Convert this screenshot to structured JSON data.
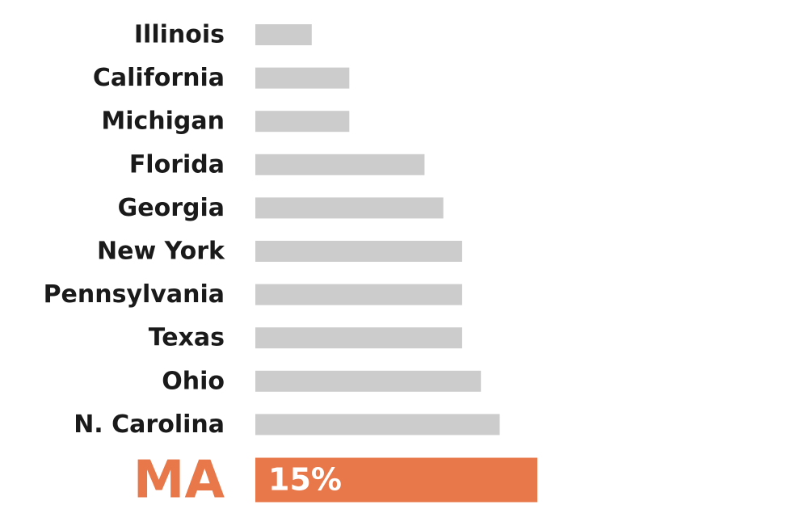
{
  "chart_data": {
    "type": "bar",
    "orientation": "horizontal",
    "categories": [
      "Illinois",
      "California",
      "Michigan",
      "Florida",
      "Georgia",
      "New York",
      "Pennsylvania",
      "Texas",
      "Ohio",
      "N. Carolina",
      "MA"
    ],
    "values": [
      3,
      5,
      5,
      9,
      10,
      11,
      11,
      11,
      12,
      13,
      15
    ],
    "value_labels": [
      null,
      null,
      null,
      null,
      null,
      null,
      null,
      null,
      null,
      null,
      "15%"
    ],
    "colors": [
      "#cccccc",
      "#cccccc",
      "#cccccc",
      "#cccccc",
      "#cccccc",
      "#cccccc",
      "#cccccc",
      "#cccccc",
      "#cccccc",
      "#cccccc",
      "#e8784a"
    ]
  }
}
